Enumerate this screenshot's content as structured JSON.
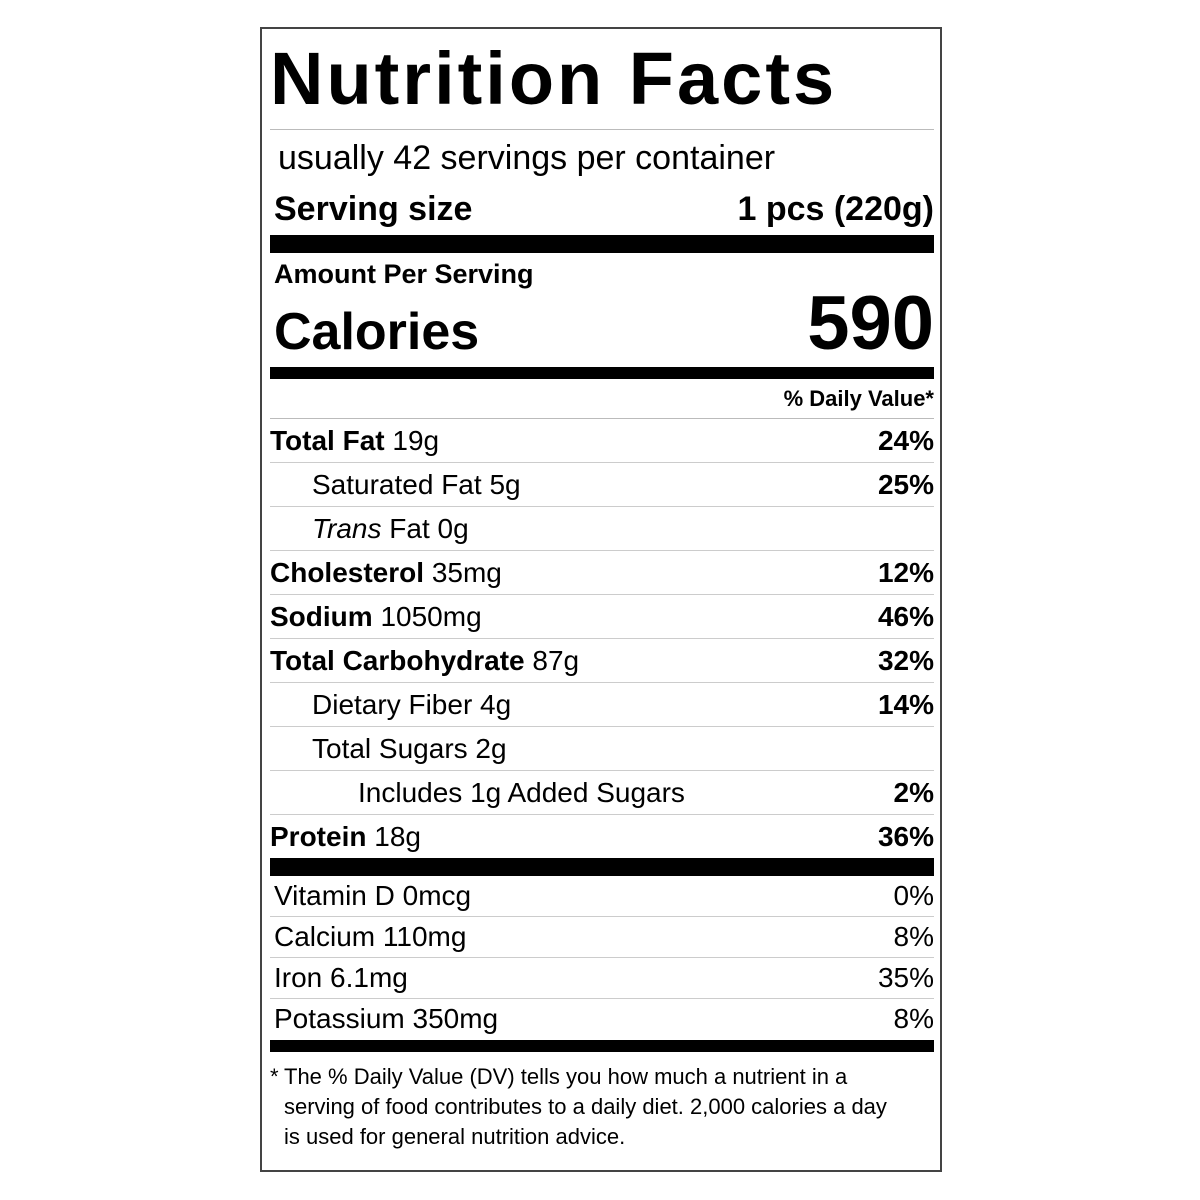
{
  "title": "Nutrition Facts",
  "servings": "usually 42 servings per container",
  "serving_size": {
    "label": "Serving size",
    "value": "1 pcs (220g)"
  },
  "amount_per_serving": "Amount Per Serving",
  "calories": {
    "label": "Calories",
    "value": 590
  },
  "dv_header": "% Daily Value*",
  "nutrients": [
    {
      "name": "Total Fat",
      "amount": "19g",
      "dv": "24%"
    },
    {
      "name": "Saturated Fat",
      "amount": "5g",
      "dv": "25%"
    },
    {
      "name_italic": "Trans",
      "name": "Fat",
      "amount": "0g"
    },
    {
      "name": "Cholesterol",
      "amount": "35mg",
      "dv": "12%"
    },
    {
      "name": "Sodium",
      "amount": "1050mg",
      "dv": "46%"
    },
    {
      "name": "Total Carbohydrate",
      "amount": "87g",
      "dv": "32%"
    },
    {
      "name": "Dietary Fiber",
      "amount": "4g",
      "dv": "14%"
    },
    {
      "name": "Total Sugars",
      "amount": "2g"
    },
    {
      "name": "Includes 1g Added Sugars",
      "dv": "2%"
    },
    {
      "name": "Protein",
      "amount": "18g",
      "dv": "36%"
    }
  ],
  "vitamins": [
    {
      "name": "Vitamin D",
      "amount": "0mcg",
      "dv": "0%"
    },
    {
      "name": "Calcium",
      "amount": "110mg",
      "dv": "8%"
    },
    {
      "name": "Iron",
      "amount": "6.1mg",
      "dv": "35%"
    },
    {
      "name": "Potassium",
      "amount": "350mg",
      "dv": "8%"
    }
  ],
  "footnote": {
    "marker": "*",
    "text": "The % Daily Value (DV) tells you how much a nutrient in a serving of food contributes to a daily diet. 2,000 calories a day is used for general nutrition advice."
  }
}
